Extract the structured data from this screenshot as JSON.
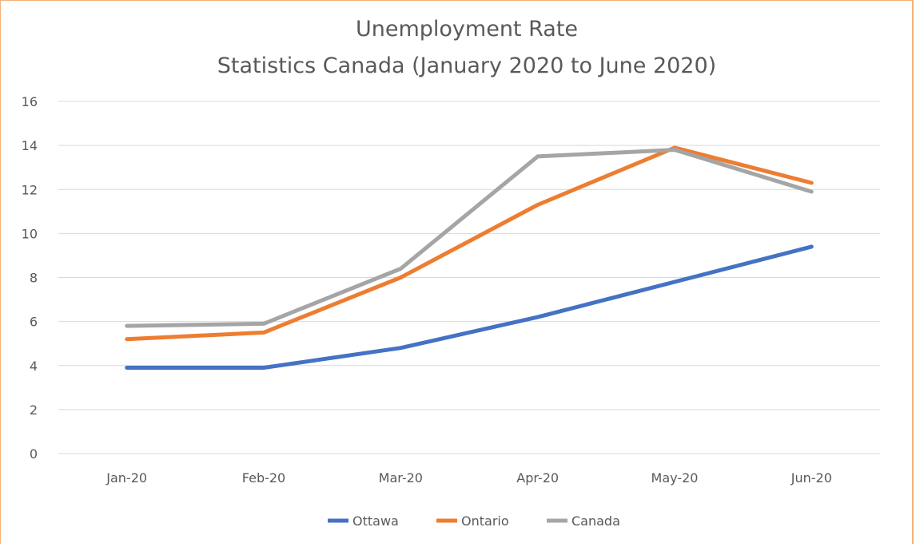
{
  "chart_data": {
    "type": "line",
    "title": "Unemployment Rate",
    "subtitle": "Statistics Canada (January 2020 to June 2020)",
    "categories": [
      "Jan-20",
      "Feb-20",
      "Mar-20",
      "Apr-20",
      "May-20",
      "Jun-20"
    ],
    "series": [
      {
        "name": "Ottawa",
        "color": "#4472c4",
        "values": [
          3.9,
          3.9,
          4.8,
          6.2,
          7.8,
          9.4
        ]
      },
      {
        "name": "Ontario",
        "color": "#ed7d31",
        "values": [
          5.2,
          5.5,
          8.0,
          11.3,
          13.9,
          12.3
        ]
      },
      {
        "name": "Canada",
        "color": "#a5a5a5",
        "values": [
          5.8,
          5.9,
          8.4,
          13.5,
          13.8,
          11.9
        ]
      }
    ],
    "ylim": [
      0,
      16
    ],
    "yticks": [
      "0",
      "2",
      "4",
      "6",
      "8",
      "10",
      "12",
      "14",
      "16"
    ],
    "xlabel": "",
    "ylabel": "",
    "grid": true,
    "legend_position": "bottom"
  }
}
